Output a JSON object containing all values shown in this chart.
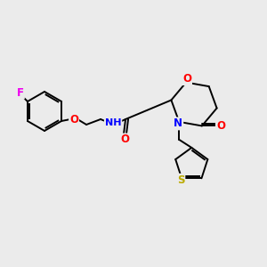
{
  "bg_color": "#ebebeb",
  "bond_color": "#000000",
  "atom_colors": {
    "F": "#ee00ee",
    "O": "#ff0000",
    "N": "#0000ff",
    "S": "#bbaa00",
    "C": "#000000",
    "H": "#000000"
  },
  "font_size": 8.5,
  "lw": 1.4,
  "figsize": [
    3.0,
    3.0
  ],
  "dpi": 100
}
